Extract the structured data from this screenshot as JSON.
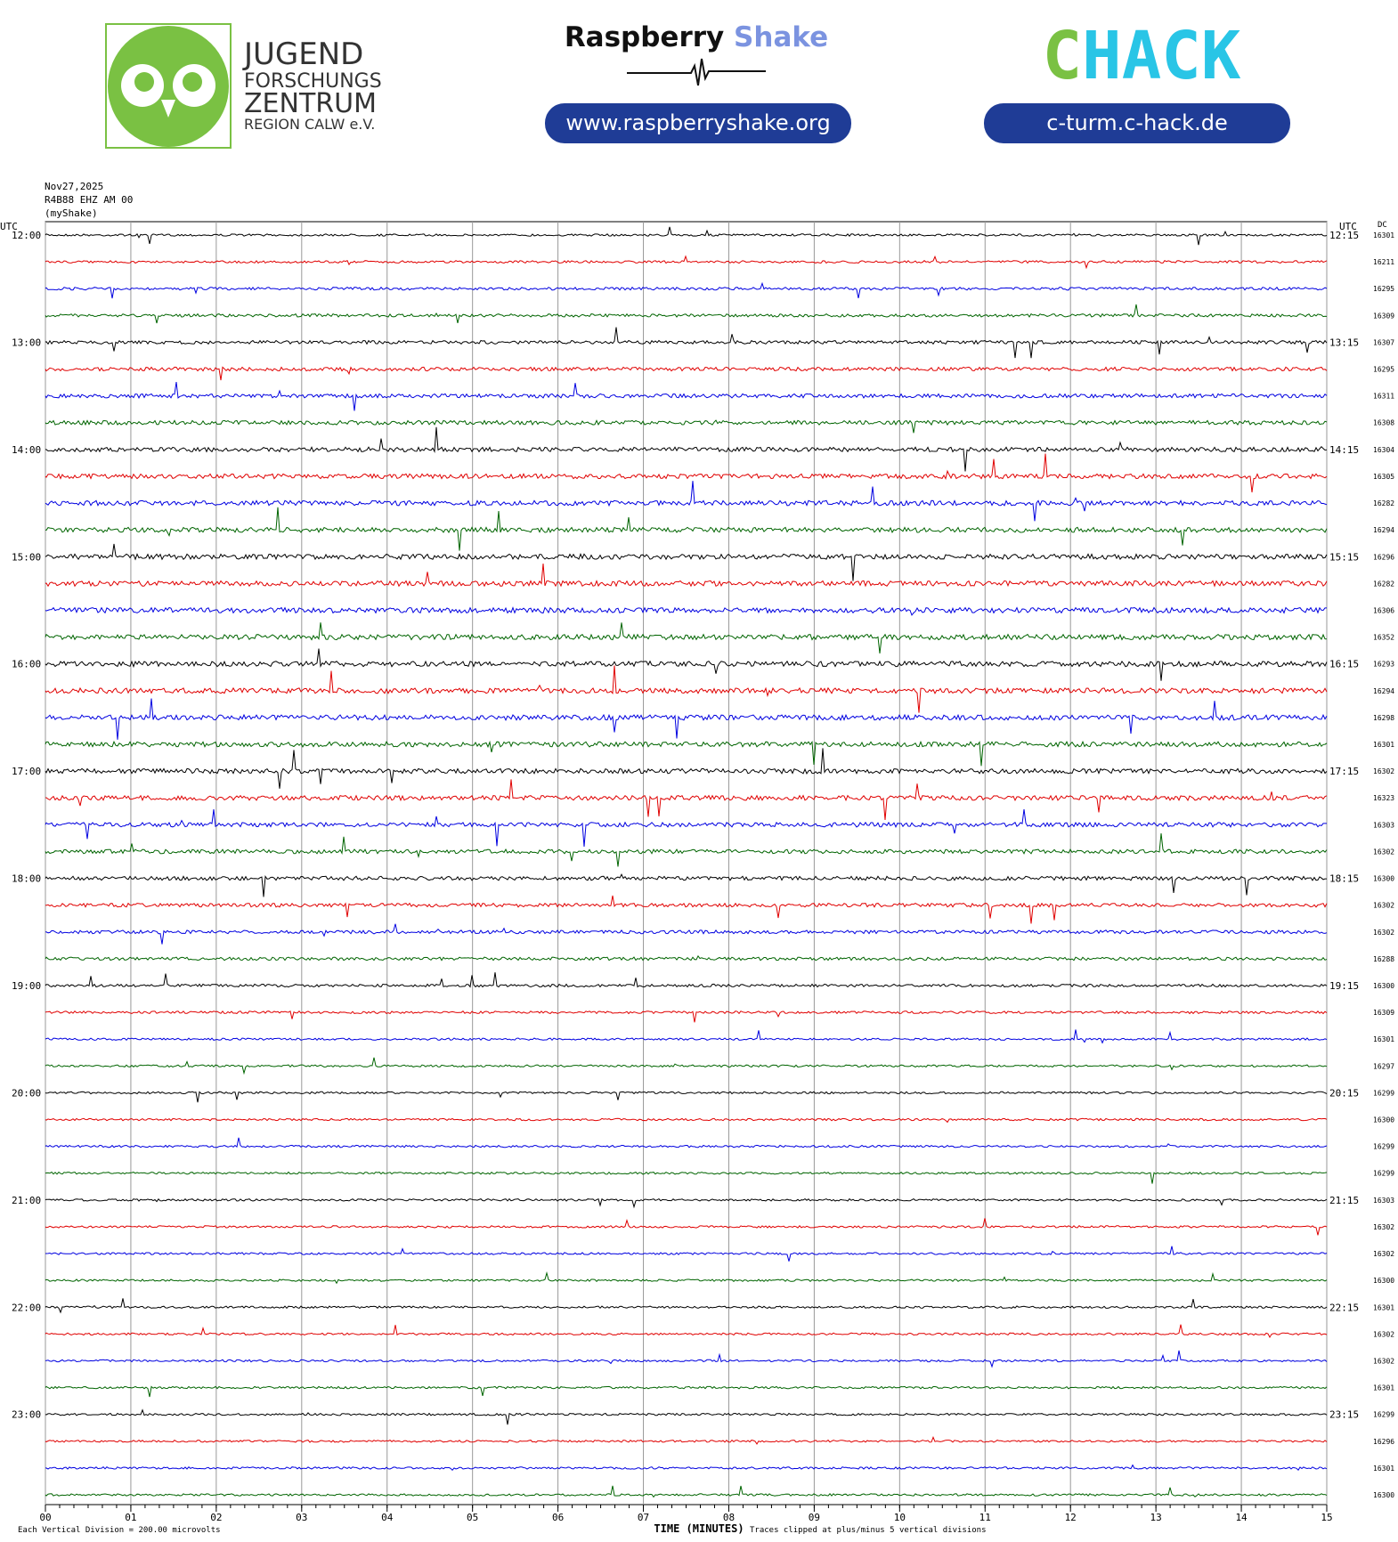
{
  "header": {
    "org_lines": [
      "JUGEND",
      "FORSCHUNGS",
      "ZENTRUM",
      "REGION CALW e.V."
    ],
    "brand_first": "Raspberry",
    "brand_second": "Shake",
    "brand_url": "www.raspberryshake.org",
    "chack_c": "C",
    "chack_rest": "HACK",
    "chack_url": "c-turm.c-hack.de"
  },
  "chart_data": {
    "type": "helicorder",
    "date": "Nov27,2025",
    "station": "R4B88 EHZ AM 00",
    "network": "(myShake)",
    "left_axis_label": "UTC",
    "right_axis_label": "UTC",
    "dc_label": "DC",
    "hour_labels": [
      "12:00",
      "13:00",
      "14:00",
      "15:00",
      "16:00",
      "17:00",
      "18:00",
      "19:00",
      "20:00",
      "21:00",
      "22:00",
      "23:00"
    ],
    "right_labels": [
      "12:15",
      "13:15",
      "14:15",
      "15:15",
      "16:15",
      "17:15",
      "18:15",
      "19:15",
      "20:15",
      "21:15",
      "22:15",
      "23:15"
    ],
    "dc_values": [
      16301,
      16211,
      16295,
      16309,
      16307,
      16295,
      16311,
      16308,
      16304,
      16305,
      16282,
      16294,
      16296,
      16282,
      16306,
      16352,
      16293,
      16294,
      16298,
      16301,
      16302,
      16323,
      16303,
      16302,
      16300,
      16302,
      16302,
      16288,
      16300,
      16309,
      16301,
      16297,
      16299,
      16300,
      16299,
      16299,
      16303,
      16302,
      16302,
      16300,
      16301,
      16302,
      16302,
      16301,
      16299,
      16296,
      16301,
      16300
    ],
    "trace_colors": [
      "#000000",
      "#e00000",
      "#0000e0",
      "#006400"
    ],
    "xlim": [
      0,
      15
    ],
    "xticks": [
      {
        "value": 0,
        "label": "00"
      },
      {
        "value": 1,
        "label": "01"
      },
      {
        "value": 2,
        "label": "02"
      },
      {
        "value": 3,
        "label": "03"
      },
      {
        "value": 4,
        "label": "04"
      },
      {
        "value": 5,
        "label": "05"
      },
      {
        "value": 6,
        "label": "06"
      },
      {
        "value": 7,
        "label": "07"
      },
      {
        "value": 8,
        "label": "08"
      },
      {
        "value": 9,
        "label": "09"
      },
      {
        "value": 10,
        "label": "10"
      },
      {
        "value": 11,
        "label": "11"
      },
      {
        "value": 12,
        "label": "12"
      },
      {
        "value": 13,
        "label": "13"
      },
      {
        "value": 14,
        "label": "14"
      },
      {
        "value": 15,
        "label": "15"
      }
    ],
    "xlabel": "TIME (MINUTES)",
    "scale_note": "Each Vertical Division =  200.00 microvolts",
    "clip_note": "Traces clipped at plus/minus 5 vertical divisions",
    "grid": true
  }
}
